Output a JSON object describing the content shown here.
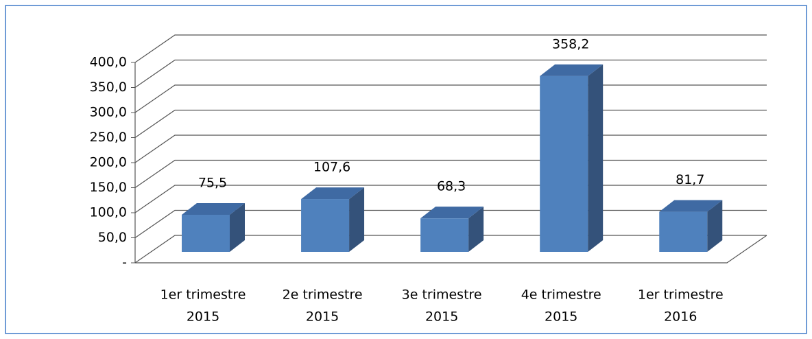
{
  "chart_data": {
    "type": "bar3d",
    "categories": [
      [
        "1er trimestre",
        "2015"
      ],
      [
        "2e trimestre",
        "2015"
      ],
      [
        "3e trimestre",
        "2015"
      ],
      [
        "4e trimestre",
        "2015"
      ],
      [
        "1er trimestre",
        "2016"
      ]
    ],
    "values": [
      75.5,
      107.6,
      68.3,
      358.2,
      81.7
    ],
    "value_labels": [
      "75,5",
      "107,6",
      "68,3",
      "358,2",
      "81,7"
    ],
    "color": "#4f81bd",
    "ylim": [
      0,
      400
    ],
    "yticks": [
      {
        "value": 0,
        "label": "-"
      },
      {
        "value": 50,
        "label": "50,0"
      },
      {
        "value": 100,
        "label": "100,0"
      },
      {
        "value": 150,
        "label": "150,0"
      },
      {
        "value": 200,
        "label": "200,0"
      },
      {
        "value": 250,
        "label": "250,0"
      },
      {
        "value": 300,
        "label": "300,0"
      },
      {
        "value": 350,
        "label": "350,0"
      },
      {
        "value": 400,
        "label": "400,0"
      }
    ],
    "grid": true
  }
}
